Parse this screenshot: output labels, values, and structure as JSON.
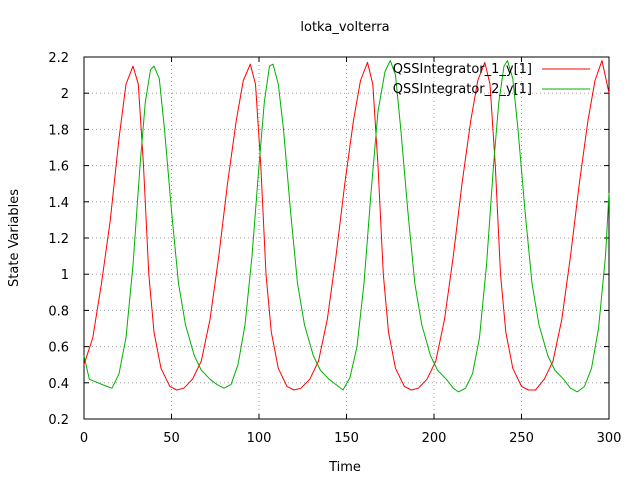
{
  "chart_data": {
    "type": "line",
    "title": "lotka_volterra",
    "xlabel": "Time",
    "ylabel": "State Variables",
    "xlim": [
      0,
      300
    ],
    "ylim": [
      0.2,
      2.2
    ],
    "x_ticks": [
      "0",
      "50",
      "100",
      "150",
      "200",
      "250",
      "300"
    ],
    "y_ticks": [
      "0.2",
      "0.4",
      "0.6",
      "0.8",
      "1",
      "1.2",
      "1.4",
      "1.6",
      "1.8",
      "2",
      "2.2"
    ],
    "grid": true,
    "legend_position": "top-right",
    "series": [
      {
        "name": "QSSIntegrator_1_y[1]",
        "color": "#ff0000",
        "points": [
          [
            0,
            0.5
          ],
          [
            5,
            0.65
          ],
          [
            10,
            0.95
          ],
          [
            15,
            1.3
          ],
          [
            20,
            1.75
          ],
          [
            24,
            2.05
          ],
          [
            28,
            2.15
          ],
          [
            31,
            2.05
          ],
          [
            34,
            1.6
          ],
          [
            37,
            1.0
          ],
          [
            40,
            0.68
          ],
          [
            44,
            0.48
          ],
          [
            49,
            0.38
          ],
          [
            53,
            0.36
          ],
          [
            57,
            0.37
          ],
          [
            62,
            0.42
          ],
          [
            67,
            0.52
          ],
          [
            72,
            0.75
          ],
          [
            77,
            1.1
          ],
          [
            82,
            1.5
          ],
          [
            87,
            1.85
          ],
          [
            91,
            2.07
          ],
          [
            95,
            2.16
          ],
          [
            98,
            2.05
          ],
          [
            101,
            1.6
          ],
          [
            104,
            1.0
          ],
          [
            107,
            0.68
          ],
          [
            111,
            0.48
          ],
          [
            116,
            0.38
          ],
          [
            120,
            0.36
          ],
          [
            124,
            0.37
          ],
          [
            129,
            0.42
          ],
          [
            134,
            0.52
          ],
          [
            139,
            0.75
          ],
          [
            144,
            1.1
          ],
          [
            149,
            1.5
          ],
          [
            154,
            1.85
          ],
          [
            158,
            2.07
          ],
          [
            162,
            2.17
          ],
          [
            165,
            2.05
          ],
          [
            168,
            1.6
          ],
          [
            171,
            1.0
          ],
          [
            174,
            0.68
          ],
          [
            178,
            0.48
          ],
          [
            183,
            0.38
          ],
          [
            187,
            0.36
          ],
          [
            191,
            0.37
          ],
          [
            196,
            0.42
          ],
          [
            201,
            0.52
          ],
          [
            206,
            0.75
          ],
          [
            211,
            1.1
          ],
          [
            216,
            1.5
          ],
          [
            221,
            1.85
          ],
          [
            225,
            2.07
          ],
          [
            229,
            2.17
          ],
          [
            232,
            2.05
          ],
          [
            235,
            1.6
          ],
          [
            238,
            1.0
          ],
          [
            241,
            0.68
          ],
          [
            245,
            0.48
          ],
          [
            250,
            0.38
          ],
          [
            254,
            0.36
          ],
          [
            258,
            0.36
          ],
          [
            263,
            0.42
          ],
          [
            268,
            0.52
          ],
          [
            273,
            0.75
          ],
          [
            278,
            1.1
          ],
          [
            283,
            1.5
          ],
          [
            288,
            1.85
          ],
          [
            292,
            2.07
          ],
          [
            296,
            2.18
          ],
          [
            300,
            2.0
          ]
        ]
      },
      {
        "name": "QSSIntegrator_2_y[1]",
        "color": "#00b000",
        "points": [
          [
            0,
            0.55
          ],
          [
            3,
            0.42
          ],
          [
            8,
            0.4
          ],
          [
            13,
            0.38
          ],
          [
            16,
            0.37
          ],
          [
            20,
            0.45
          ],
          [
            24,
            0.65
          ],
          [
            28,
            1.05
          ],
          [
            32,
            1.6
          ],
          [
            35,
            1.95
          ],
          [
            38,
            2.13
          ],
          [
            40,
            2.15
          ],
          [
            43,
            2.08
          ],
          [
            46,
            1.8
          ],
          [
            50,
            1.35
          ],
          [
            54,
            0.95
          ],
          [
            58,
            0.72
          ],
          [
            63,
            0.55
          ],
          [
            67,
            0.47
          ],
          [
            72,
            0.42
          ],
          [
            76,
            0.39
          ],
          [
            80,
            0.37
          ],
          [
            84,
            0.39
          ],
          [
            88,
            0.5
          ],
          [
            92,
            0.72
          ],
          [
            96,
            1.1
          ],
          [
            100,
            1.6
          ],
          [
            103,
            1.95
          ],
          [
            106,
            2.15
          ],
          [
            108,
            2.16
          ],
          [
            111,
            2.05
          ],
          [
            114,
            1.8
          ],
          [
            118,
            1.35
          ],
          [
            122,
            0.95
          ],
          [
            126,
            0.72
          ],
          [
            131,
            0.55
          ],
          [
            135,
            0.47
          ],
          [
            140,
            0.42
          ],
          [
            144,
            0.39
          ],
          [
            148,
            0.36
          ],
          [
            152,
            0.43
          ],
          [
            156,
            0.6
          ],
          [
            160,
            0.95
          ],
          [
            164,
            1.45
          ],
          [
            168,
            1.9
          ],
          [
            172,
            2.12
          ],
          [
            175,
            2.18
          ],
          [
            178,
            2.1
          ],
          [
            181,
            1.8
          ],
          [
            185,
            1.35
          ],
          [
            189,
            0.95
          ],
          [
            193,
            0.72
          ],
          [
            198,
            0.55
          ],
          [
            202,
            0.47
          ],
          [
            207,
            0.42
          ],
          [
            211,
            0.37
          ],
          [
            214,
            0.35
          ],
          [
            218,
            0.37
          ],
          [
            222,
            0.45
          ],
          [
            226,
            0.65
          ],
          [
            230,
            1.05
          ],
          [
            234,
            1.6
          ],
          [
            237,
            1.95
          ],
          [
            240,
            2.15
          ],
          [
            242,
            2.18
          ],
          [
            245,
            2.08
          ],
          [
            248,
            1.8
          ],
          [
            252,
            1.35
          ],
          [
            256,
            0.95
          ],
          [
            260,
            0.72
          ],
          [
            265,
            0.55
          ],
          [
            269,
            0.47
          ],
          [
            274,
            0.42
          ],
          [
            278,
            0.37
          ],
          [
            282,
            0.35
          ],
          [
            286,
            0.38
          ],
          [
            290,
            0.48
          ],
          [
            294,
            0.7
          ],
          [
            298,
            1.1
          ],
          [
            300,
            1.45
          ]
        ]
      }
    ]
  }
}
